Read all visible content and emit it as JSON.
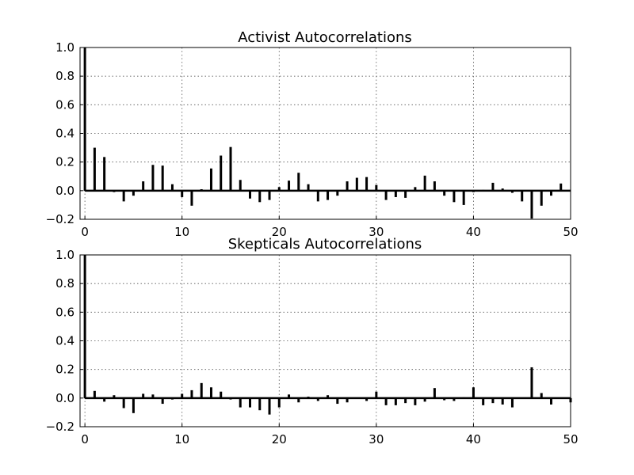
{
  "chart_data": [
    {
      "type": "bar",
      "title": "Activist Autocorrelations",
      "xlim": [
        -0.5,
        50
      ],
      "ylim": [
        -0.2,
        1.0
      ],
      "x_ticks": [
        0,
        10,
        20,
        30,
        40,
        50
      ],
      "y_ticks": [
        -0.2,
        0.0,
        0.2,
        0.4,
        0.6,
        0.8,
        1.0
      ],
      "x_tick_labels": [
        "0",
        "10",
        "20",
        "30",
        "40",
        "50"
      ],
      "y_tick_labels": [
        "−0.2",
        "0.0",
        "0.2",
        "0.4",
        "0.6",
        "0.8",
        "1.0"
      ],
      "grid": true,
      "lags": [
        0,
        1,
        2,
        3,
        4,
        5,
        6,
        7,
        8,
        9,
        10,
        11,
        12,
        13,
        14,
        15,
        16,
        17,
        18,
        19,
        20,
        21,
        22,
        23,
        24,
        25,
        26,
        27,
        28,
        29,
        30,
        31,
        32,
        33,
        34,
        35,
        36,
        37,
        38,
        39,
        40,
        41,
        42,
        43,
        44,
        45,
        46,
        47,
        48,
        49
      ],
      "values": [
        1.0,
        0.3,
        0.235,
        -0.01,
        -0.075,
        -0.035,
        0.065,
        0.18,
        0.175,
        0.045,
        -0.045,
        -0.105,
        0.01,
        0.155,
        0.245,
        0.305,
        0.075,
        -0.055,
        -0.08,
        -0.065,
        0.025,
        0.07,
        0.125,
        0.045,
        -0.075,
        -0.065,
        -0.035,
        0.065,
        0.09,
        0.095,
        0.04,
        -0.065,
        -0.045,
        -0.05,
        0.025,
        0.105,
        0.065,
        -0.035,
        -0.08,
        -0.1,
        -0.01,
        0.005,
        0.055,
        0.015,
        -0.015,
        -0.075,
        -0.195,
        -0.105,
        -0.035,
        0.05
      ]
    },
    {
      "type": "bar",
      "title": "Skepticals Autocorrelations",
      "xlim": [
        -0.5,
        50
      ],
      "ylim": [
        -0.2,
        1.0
      ],
      "x_ticks": [
        0,
        10,
        20,
        30,
        40,
        50
      ],
      "y_ticks": [
        -0.2,
        0.0,
        0.2,
        0.4,
        0.6,
        0.8,
        1.0
      ],
      "x_tick_labels": [
        "0",
        "10",
        "20",
        "30",
        "40",
        "50"
      ],
      "y_tick_labels": [
        "−0.2",
        "0.0",
        "0.2",
        "0.4",
        "0.6",
        "0.8",
        "1.0"
      ],
      "grid": true,
      "lags": [
        0,
        1,
        2,
        3,
        4,
        5,
        6,
        7,
        8,
        9,
        10,
        11,
        12,
        13,
        14,
        15,
        16,
        17,
        18,
        19,
        20,
        21,
        22,
        23,
        24,
        25,
        26,
        27,
        28,
        29,
        30,
        31,
        32,
        33,
        34,
        35,
        36,
        37,
        38,
        39,
        40,
        41,
        42,
        43,
        44,
        45,
        46,
        47,
        48,
        49,
        50
      ],
      "values": [
        1.0,
        0.05,
        -0.025,
        0.02,
        -0.07,
        -0.105,
        0.03,
        0.025,
        -0.04,
        -0.01,
        0.03,
        0.055,
        0.105,
        0.075,
        0.045,
        -0.01,
        -0.065,
        -0.065,
        -0.085,
        -0.115,
        -0.065,
        0.025,
        -0.03,
        0.01,
        -0.02,
        0.02,
        -0.04,
        -0.03,
        0.0,
        -0.02,
        0.045,
        -0.05,
        -0.05,
        -0.035,
        -0.05,
        -0.025,
        0.07,
        -0.015,
        -0.02,
        0.005,
        0.075,
        -0.05,
        -0.035,
        -0.045,
        -0.065,
        0.0,
        0.215,
        0.035,
        -0.045,
        0.0,
        -0.03
      ]
    }
  ]
}
